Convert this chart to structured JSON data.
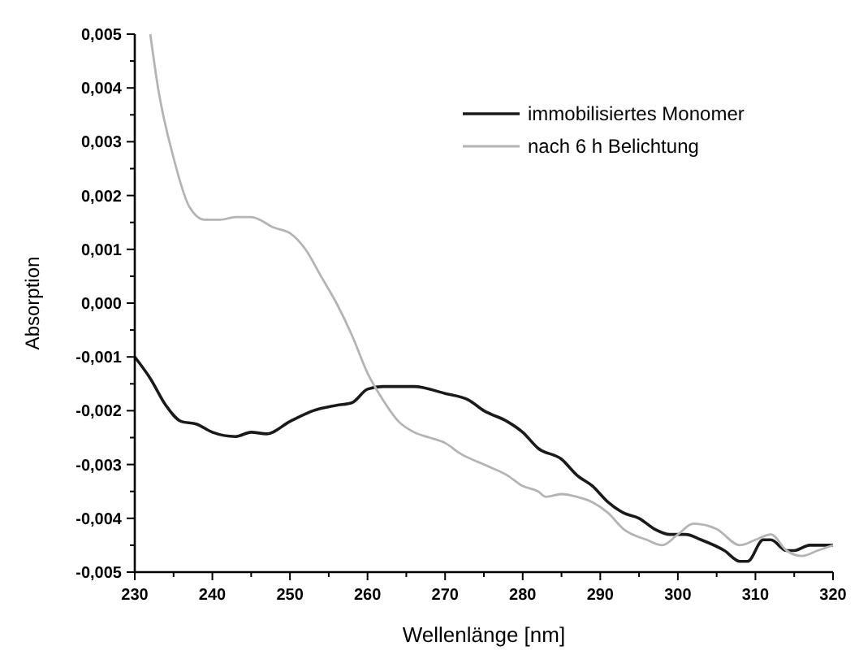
{
  "chart_data": {
    "type": "line",
    "xlabel": "Wellenlänge [nm]",
    "ylabel": "Absorption",
    "xlim": [
      230,
      320
    ],
    "ylim": [
      -0.005,
      0.005
    ],
    "xticks": [
      230,
      {
        "value": 235,
        "label": null
      },
      240,
      {
        "value": 245,
        "label": null
      },
      250,
      {
        "value": 255,
        "label": null
      },
      260,
      {
        "value": 265,
        "label": null
      },
      270,
      {
        "value": 275,
        "label": null
      },
      280,
      {
        "value": 285,
        "label": null
      },
      290,
      {
        "value": 295,
        "label": null
      },
      300,
      {
        "value": 305,
        "label": null
      },
      310,
      {
        "value": 315,
        "label": null
      },
      320
    ],
    "yticks": [
      {
        "value": -0.005,
        "label": "-0,005"
      },
      {
        "value": -0.0045,
        "label": null
      },
      {
        "value": -0.004,
        "label": "-0,004"
      },
      {
        "value": -0.0035,
        "label": null
      },
      {
        "value": -0.003,
        "label": "-0,003"
      },
      {
        "value": -0.0025,
        "label": null
      },
      {
        "value": -0.002,
        "label": "-0,002"
      },
      {
        "value": -0.0015,
        "label": null
      },
      {
        "value": -0.001,
        "label": "-0,001"
      },
      {
        "value": -0.0005,
        "label": null
      },
      {
        "value": 0,
        "label": "0,000"
      },
      {
        "value": 0.0005,
        "label": null
      },
      {
        "value": 0.001,
        "label": "0,001"
      },
      {
        "value": 0.0015,
        "label": null
      },
      {
        "value": 0.002,
        "label": "0,002"
      },
      {
        "value": 0.0025,
        "label": null
      },
      {
        "value": 0.003,
        "label": "0,003"
      },
      {
        "value": 0.0035,
        "label": null
      },
      {
        "value": 0.004,
        "label": "0,004"
      },
      {
        "value": 0.0045,
        "label": null
      },
      {
        "value": 0.005,
        "label": "0,005"
      }
    ],
    "grid": false,
    "legend": "top right",
    "line_style": "solid",
    "marker": "none",
    "series": [
      {
        "name": "immobilisiertes Monomer",
        "color": "#1a1a1a",
        "x": [
          230,
          232,
          234,
          236,
          238,
          240,
          243,
          245,
          247,
          250,
          253,
          256,
          258,
          260,
          262,
          266,
          270,
          273,
          275,
          278,
          280,
          282,
          285,
          287,
          289,
          291,
          293,
          295,
          297,
          299,
          301,
          303,
          306,
          308,
          309,
          311,
          312,
          314,
          315,
          317,
          320
        ],
        "values": [
          -0.001,
          -0.0014,
          -0.0019,
          -0.0022,
          -0.00225,
          -0.0024,
          -0.00248,
          -0.0024,
          -0.00243,
          -0.0022,
          -0.002,
          -0.0019,
          -0.00185,
          -0.0016,
          -0.00155,
          -0.00155,
          -0.00168,
          -0.0018,
          -0.002,
          -0.0022,
          -0.0024,
          -0.0027,
          -0.0029,
          -0.0032,
          -0.0034,
          -0.0037,
          -0.0039,
          -0.004,
          -0.0042,
          -0.0043,
          -0.0043,
          -0.0044,
          -0.0046,
          -0.0048,
          -0.0048,
          -0.0044,
          -0.0044,
          -0.0046,
          -0.0046,
          -0.0045,
          -0.0045
        ]
      },
      {
        "name": "nach 6 h Belichtung",
        "color": "#b4b4b4",
        "x": [
          232,
          233,
          235,
          237,
          239,
          241,
          243,
          245,
          248,
          250,
          252,
          254,
          256,
          258,
          260,
          262,
          264,
          266,
          268,
          270,
          272,
          275,
          278,
          280,
          282,
          283,
          285,
          287,
          289,
          291,
          293,
          296,
          298,
          300,
          302,
          305,
          308,
          310,
          312,
          314,
          316,
          318,
          320
        ],
        "values": [
          0.005,
          0.004,
          0.0027,
          0.0018,
          0.00155,
          0.00155,
          0.0016,
          0.0016,
          0.0014,
          0.0013,
          0.001,
          0.0005,
          0,
          -0.0006,
          -0.0013,
          -0.0018,
          -0.0022,
          -0.0024,
          -0.0025,
          -0.0026,
          -0.0028,
          -0.003,
          -0.0032,
          -0.0034,
          -0.0035,
          -0.0036,
          -0.00355,
          -0.0036,
          -0.0037,
          -0.0039,
          -0.0042,
          -0.0044,
          -0.0045,
          -0.0043,
          -0.0041,
          -0.0042,
          -0.0045,
          -0.0044,
          -0.0043,
          -0.0046,
          -0.0047,
          -0.0046,
          -0.0045
        ]
      }
    ]
  }
}
